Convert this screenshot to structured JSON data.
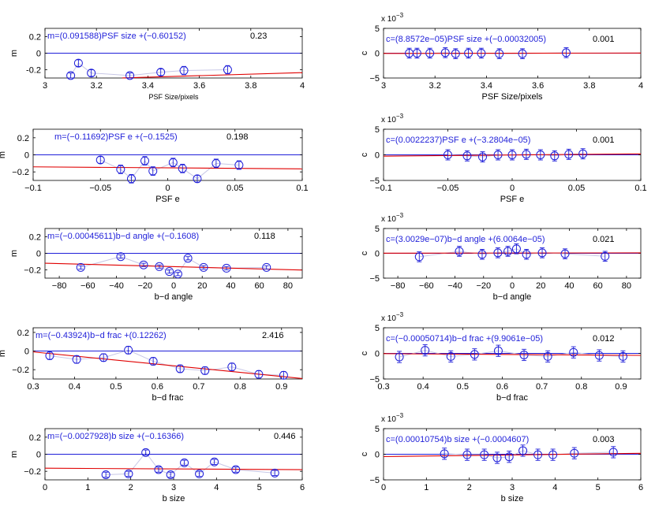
{
  "colors": {
    "axis": "#000000",
    "data": "#1f1fd9",
    "fit": "#e00000",
    "zero": "#1f1fd9",
    "annotation": "#1f1fd9",
    "connector": "#c7c7e6"
  },
  "chart_data": [
    {
      "id": "m-psf-size",
      "type": "scatter",
      "ylabel": "m",
      "xlabel": "PSF Size/pixels",
      "xlabel_size": "small",
      "xlim": [
        3,
        4
      ],
      "ylim": [
        -0.3,
        0.3
      ],
      "xticks": [
        "3",
        "3.2",
        "3.4",
        "3.6",
        "3.8",
        "4"
      ],
      "xtick_values": [
        3,
        3.2,
        3.4,
        3.6,
        3.8,
        4
      ],
      "yticks": [
        "0.2",
        "0",
        "-0.2"
      ],
      "ytick_values": [
        0.2,
        0,
        -0.2
      ],
      "fit_label": "m=(0.091588)PSF size +(−0.60152)",
      "stat": "0.23",
      "slope": 0.091588,
      "intercept": -0.60152,
      "fit_range": [
        3.3,
        4.0
      ],
      "x": [
        3.1,
        3.13,
        3.18,
        3.33,
        3.45,
        3.54,
        3.71
      ],
      "y": [
        -0.27,
        -0.12,
        -0.24,
        -0.27,
        -0.23,
        -0.21,
        -0.2
      ],
      "err": [
        0.03,
        0.04,
        0.04,
        0.03,
        0.04,
        0.05,
        0.05
      ]
    },
    {
      "id": "c-psf-size",
      "type": "scatter",
      "ylabel": "c",
      "xlabel": "PSF Size/pixels",
      "xlim": [
        3,
        4
      ],
      "ylim": [
        -5,
        5
      ],
      "xticks": [
        "3",
        "3.2",
        "3.4",
        "3.6",
        "3.8",
        "4"
      ],
      "xtick_values": [
        3,
        3.2,
        3.4,
        3.6,
        3.8,
        4
      ],
      "yticks": [
        "5",
        "0",
        "−5"
      ],
      "ytick_values": [
        5,
        0,
        -5
      ],
      "scale_exp": "−3",
      "fit_label": "c=(8.8572e−05)PSF size +(−0.00032005)",
      "stat": "0.001",
      "slope": 0.088572,
      "intercept": -0.32005,
      "fit_range": [
        3,
        4
      ],
      "x": [
        3.1,
        3.13,
        3.18,
        3.24,
        3.28,
        3.33,
        3.38,
        3.45,
        3.54,
        3.71
      ],
      "y": [
        0,
        0,
        0,
        0.1,
        -0.1,
        0,
        0,
        -0.1,
        -0.1,
        0.1
      ],
      "err": [
        1,
        1,
        1,
        1,
        1,
        1,
        1,
        1,
        1,
        1
      ]
    },
    {
      "id": "m-psf-e",
      "type": "scatter",
      "ylabel": "m",
      "xlabel": "PSF e",
      "xlim": [
        -0.1,
        0.1
      ],
      "ylim": [
        -0.3,
        0.3
      ],
      "xticks": [
        "−0.1",
        "−0.05",
        "0",
        "0.05",
        "0.1"
      ],
      "xtick_values": [
        -0.1,
        -0.05,
        0,
        0.05,
        0.1
      ],
      "yticks": [
        "0.2",
        "0",
        "−0.2"
      ],
      "ytick_values": [
        0.2,
        0,
        -0.2
      ],
      "fit_label": "m=(−0.11692)PSF e +(−0.1525)",
      "stat": "0.198",
      "slope": -0.11692,
      "intercept": -0.1525,
      "fit_range": [
        -0.1,
        0.1
      ],
      "x": [
        -0.05,
        -0.035,
        -0.027,
        -0.017,
        -0.011,
        0.004,
        0.011,
        0.022,
        0.036,
        0.053
      ],
      "y": [
        -0.06,
        -0.17,
        -0.28,
        -0.07,
        -0.19,
        -0.09,
        -0.16,
        -0.28,
        -0.1,
        -0.12
      ],
      "err": [
        0.04,
        0.05,
        0.05,
        0.05,
        0.05,
        0.05,
        0.05,
        0.04,
        0.05,
        0.05
      ]
    },
    {
      "id": "c-psf-e",
      "type": "scatter",
      "ylabel": "c",
      "xlabel": "PSF e",
      "xlim": [
        -0.1,
        0.1
      ],
      "ylim": [
        -5,
        5
      ],
      "xticks": [
        "−0.1",
        "−0.05",
        "0",
        "0.05",
        "0.1"
      ],
      "xtick_values": [
        -0.1,
        -0.05,
        0,
        0.05,
        0.1
      ],
      "yticks": [
        "5",
        "0",
        "−5"
      ],
      "ytick_values": [
        5,
        0,
        -5
      ],
      "scale_exp": "−3",
      "fit_label": "c=(0.0022237)PSF e +(−3.2804e−05)",
      "stat": "0.001",
      "slope": 2.2237,
      "intercept": -0.032804,
      "fit_range": [
        -0.1,
        0.1
      ],
      "x": [
        -0.05,
        -0.035,
        -0.023,
        -0.011,
        0,
        0.011,
        0.022,
        0.033,
        0.044,
        0.055
      ],
      "y": [
        0,
        -0.2,
        -0.4,
        0,
        0,
        0.1,
        0,
        -0.2,
        0.1,
        0.2
      ],
      "err": [
        1,
        1,
        1,
        1,
        1,
        1,
        1,
        1,
        1,
        1
      ]
    },
    {
      "id": "m-bd-angle",
      "type": "scatter",
      "ylabel": "m",
      "xlabel": "b−d angle",
      "xlim": [
        -90,
        90
      ],
      "ylim": [
        -0.3,
        0.3
      ],
      "xticks": [
        "−80",
        "−60",
        "−40",
        "−20",
        "0",
        "20",
        "40",
        "60",
        "80"
      ],
      "xtick_values": [
        -80,
        -60,
        -40,
        -20,
        0,
        20,
        40,
        60,
        80
      ],
      "yticks": [
        "0.2",
        "0",
        "−0.2"
      ],
      "ytick_values": [
        0.2,
        0,
        -0.2
      ],
      "fit_label": "m=(−0.00045611)b−d angle +(−0.1608)",
      "stat": "0.118",
      "slope": -0.00045611,
      "intercept": -0.1608,
      "fit_range": [
        -90,
        90
      ],
      "x": [
        -65,
        -37,
        -21,
        -10,
        -3,
        3,
        10,
        21,
        37,
        65
      ],
      "y": [
        -0.17,
        -0.04,
        -0.14,
        -0.16,
        -0.22,
        -0.25,
        -0.06,
        -0.17,
        -0.18,
        -0.17
      ],
      "err": [
        0.02,
        0.02,
        0.02,
        0.02,
        0.02,
        0.02,
        0.02,
        0.02,
        0.02,
        0.02
      ]
    },
    {
      "id": "c-bd-angle",
      "type": "scatter",
      "ylabel": "c",
      "xlabel": "b−d angle",
      "xlim": [
        -90,
        90
      ],
      "ylim": [
        -5,
        5
      ],
      "xticks": [
        "−80",
        "−60",
        "−40",
        "−20",
        "0",
        "20",
        "40",
        "60",
        "80"
      ],
      "xtick_values": [
        -80,
        -60,
        -40,
        -20,
        0,
        20,
        40,
        60,
        80
      ],
      "yticks": [
        "5",
        "0",
        "−5"
      ],
      "ytick_values": [
        5,
        0,
        -5
      ],
      "scale_exp": "−3",
      "fit_label": "c=(3.0029e−07)b−d angle +(6.0064e−05)",
      "stat": "0.021",
      "slope": 0.00030029,
      "intercept": 0.060064,
      "fit_range": [
        -90,
        90
      ],
      "x": [
        -65,
        -37,
        -21,
        -10,
        -3,
        3,
        10,
        21,
        37,
        65
      ],
      "y": [
        -0.7,
        0.4,
        -0.2,
        0.1,
        0.4,
        0.9,
        -0.2,
        0.1,
        -0.1,
        -0.6
      ],
      "err": [
        1,
        1,
        1,
        1,
        1,
        1,
        1,
        1,
        1,
        1
      ]
    },
    {
      "id": "m-bd-frac",
      "type": "scatter",
      "ylabel": "m",
      "xlabel": "b−d frac",
      "xlim": [
        0.3,
        0.95
      ],
      "ylim": [
        -0.3,
        0.25
      ],
      "xticks": [
        "0.3",
        "0.4",
        "0.5",
        "0.6",
        "0.7",
        "0.8",
        "0.9"
      ],
      "xtick_values": [
        0.3,
        0.4,
        0.5,
        0.6,
        0.7,
        0.8,
        0.9
      ],
      "yticks": [
        "0.2",
        "0",
        "−0.2"
      ],
      "ytick_values": [
        0.2,
        0,
        -0.2
      ],
      "fit_label": "m=(−0.43924)b−d frac +(0.12262)",
      "stat": "2.416",
      "slope": -0.43924,
      "intercept": 0.12262,
      "fit_range": [
        0.3,
        0.95
      ],
      "x": [
        0.34,
        0.405,
        0.47,
        0.53,
        0.59,
        0.655,
        0.715,
        0.78,
        0.845,
        0.905
      ],
      "y": [
        -0.05,
        -0.09,
        -0.07,
        0.01,
        -0.11,
        -0.19,
        -0.21,
        -0.17,
        -0.25,
        -0.26
      ],
      "err": [
        0.04,
        0.04,
        0.04,
        0.04,
        0.04,
        0.04,
        0.04,
        0.04,
        0.04,
        0.04
      ]
    },
    {
      "id": "c-bd-frac",
      "type": "scatter",
      "ylabel": "c",
      "xlabel": "b−d frac",
      "xlim": [
        0.3,
        0.95
      ],
      "ylim": [
        -5,
        5
      ],
      "xticks": [
        "0.3",
        "0.4",
        "0.5",
        "0.6",
        "0.7",
        "0.8",
        "0.9"
      ],
      "xtick_values": [
        0.3,
        0.4,
        0.5,
        0.6,
        0.7,
        0.8,
        0.9
      ],
      "yticks": [
        "5",
        "0",
        "−5"
      ],
      "ytick_values": [
        5,
        0,
        -5
      ],
      "scale_exp": "−3",
      "fit_label": "c=(−0.00050714)b−d frac +(9.9061e−05)",
      "stat": "0.012",
      "slope": -0.50714,
      "intercept": 0.099061,
      "fit_range": [
        0.3,
        0.95
      ],
      "x": [
        0.34,
        0.405,
        0.47,
        0.53,
        0.59,
        0.655,
        0.715,
        0.78,
        0.845,
        0.905
      ],
      "y": [
        -0.7,
        0.6,
        -0.6,
        -0.2,
        0.5,
        -0.3,
        -0.6,
        0.2,
        -0.4,
        -0.6
      ],
      "err": [
        1.1,
        1.1,
        1.1,
        1.1,
        1.1,
        1.1,
        1.1,
        1.1,
        1.1,
        1.1
      ]
    },
    {
      "id": "m-b-size",
      "type": "scatter",
      "ylabel": "m",
      "xlabel": "b size",
      "xlim": [
        0,
        6
      ],
      "ylim": [
        -0.3,
        0.3
      ],
      "xticks": [
        "0",
        "1",
        "2",
        "3",
        "4",
        "5",
        "6"
      ],
      "xtick_values": [
        0,
        1,
        2,
        3,
        4,
        5,
        6
      ],
      "yticks": [
        "0.2",
        "0",
        "−0.2"
      ],
      "ytick_values": [
        0.2,
        0,
        -0.2
      ],
      "fit_label": "m=(−0.0027928)b size +(−0.16366)",
      "stat": "0.446",
      "slope": -0.0027928,
      "intercept": -0.16366,
      "fit_range": [
        0,
        6
      ],
      "x": [
        1.42,
        1.95,
        2.35,
        2.65,
        2.93,
        3.25,
        3.6,
        3.95,
        4.45,
        5.36
      ],
      "y": [
        -0.24,
        -0.23,
        0.02,
        -0.18,
        -0.24,
        -0.1,
        -0.23,
        -0.09,
        -0.18,
        -0.22
      ],
      "err": [
        0.03,
        0.03,
        0.03,
        0.03,
        0.03,
        0.03,
        0.03,
        0.03,
        0.03,
        0.03
      ]
    },
    {
      "id": "c-b-size",
      "type": "scatter",
      "ylabel": "c",
      "xlabel": "b size",
      "xlim": [
        0,
        6
      ],
      "ylim": [
        -5,
        5
      ],
      "xticks": [
        "0",
        "1",
        "2",
        "3",
        "4",
        "5",
        "6"
      ],
      "xtick_values": [
        0,
        1,
        2,
        3,
        4,
        5,
        6
      ],
      "yticks": [
        "5",
        "0",
        "−5"
      ],
      "ytick_values": [
        5,
        0,
        -5
      ],
      "scale_exp": "−3",
      "fit_label": "c=(0.00010754)b size +(−0.0004607)",
      "stat": "0.003",
      "slope": 0.10754,
      "intercept": -0.4607,
      "fit_range": [
        0,
        6
      ],
      "x": [
        1.42,
        1.95,
        2.35,
        2.65,
        2.93,
        3.25,
        3.6,
        3.95,
        4.45,
        5.36
      ],
      "y": [
        0.1,
        -0.1,
        -0.1,
        -0.7,
        -0.5,
        0.7,
        -0.1,
        -0.1,
        0.2,
        0.4
      ],
      "err": [
        1.1,
        1.1,
        1.1,
        1.1,
        1.1,
        1.1,
        1.1,
        1.1,
        1.1,
        1.1
      ]
    }
  ]
}
